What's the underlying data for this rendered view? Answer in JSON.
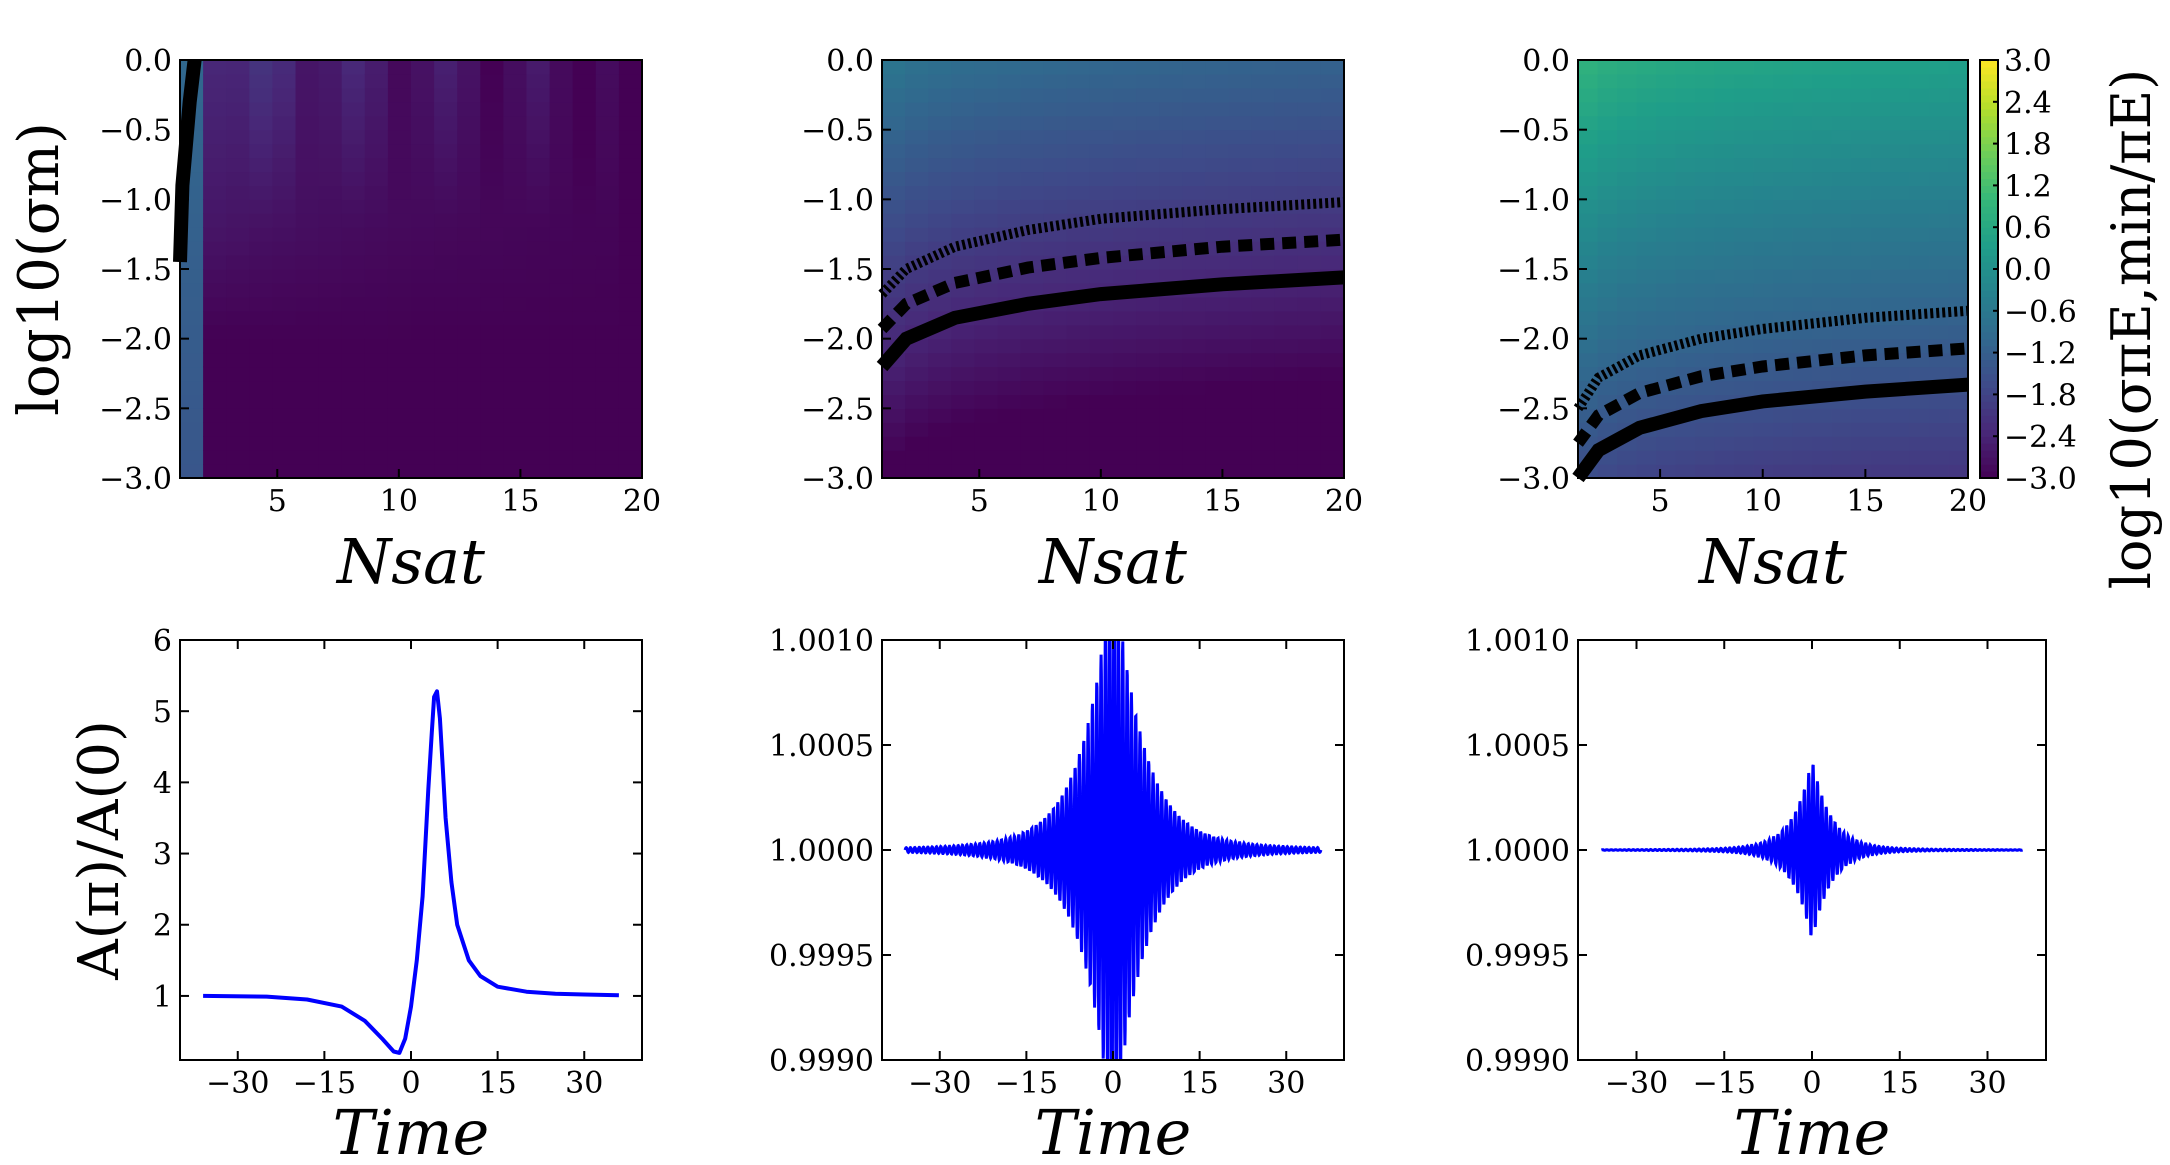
{
  "colormap": "viridis",
  "colors": {
    "curve": "#0000ff",
    "contour": "#000000",
    "frame": "#000000"
  },
  "labels": {
    "nsat": "Nsat",
    "time": "Time",
    "heatmap_ylabel": "log10(σm)",
    "lightcurve_ylabel": "A(π)/A(0)",
    "colorbar_label": "log10(σπE,min/πE)"
  },
  "chart_data": [
    {
      "type": "heatmap",
      "panel": "top-left",
      "xlabel": "Nsat",
      "ylabel": "log10(σm)",
      "x_range": [
        1,
        20
      ],
      "ylim": [
        -3.0,
        0.0
      ],
      "xticks": [
        "5",
        "10",
        "15",
        "20"
      ],
      "yticks": [
        "0.0",
        "-0.5",
        "-1.0",
        "-1.5",
        "-2.0",
        "-2.5",
        "-3.0"
      ],
      "contours": [
        {
          "style": "solid",
          "points": [
            [
              1.0,
              -1.45
            ],
            [
              1.1,
              -0.9
            ],
            [
              1.4,
              -0.3
            ],
            [
              1.6,
              0.0
            ]
          ]
        }
      ]
    },
    {
      "type": "heatmap",
      "panel": "top-middle",
      "xlabel": "Nsat",
      "ylabel": "",
      "x_range": [
        1,
        20
      ],
      "ylim": [
        -3.0,
        0.0
      ],
      "xticks": [
        "5",
        "10",
        "15",
        "20"
      ],
      "yticks": [
        "0.0",
        "-0.5",
        "-1.0",
        "-1.5",
        "-2.0",
        "-2.5",
        "-3.0"
      ],
      "contours": [
        {
          "style": "solid",
          "points": [
            [
              1,
              -2.2
            ],
            [
              2,
              -2.0
            ],
            [
              4,
              -1.85
            ],
            [
              7,
              -1.75
            ],
            [
              10,
              -1.68
            ],
            [
              15,
              -1.61
            ],
            [
              20,
              -1.56
            ]
          ]
        },
        {
          "style": "dashed",
          "points": [
            [
              1,
              -1.93
            ],
            [
              2,
              -1.75
            ],
            [
              4,
              -1.6
            ],
            [
              7,
              -1.49
            ],
            [
              10,
              -1.42
            ],
            [
              15,
              -1.34
            ],
            [
              20,
              -1.29
            ]
          ]
        },
        {
          "style": "dotted",
          "points": [
            [
              1,
              -1.68
            ],
            [
              2,
              -1.5
            ],
            [
              4,
              -1.34
            ],
            [
              7,
              -1.22
            ],
            [
              10,
              -1.14
            ],
            [
              15,
              -1.07
            ],
            [
              20,
              -1.02
            ]
          ]
        }
      ]
    },
    {
      "type": "heatmap",
      "panel": "top-right",
      "xlabel": "Nsat",
      "ylabel": "",
      "x_range": [
        1,
        20
      ],
      "ylim": [
        -3.0,
        0.0
      ],
      "xticks": [
        "5",
        "10",
        "15",
        "20"
      ],
      "yticks": [
        "0.0",
        "-0.5",
        "-1.0",
        "-1.5",
        "-2.0",
        "-2.5",
        "-3.0"
      ],
      "contours": [
        {
          "style": "solid",
          "points": [
            [
              1,
              -3.0
            ],
            [
              2,
              -2.8
            ],
            [
              4,
              -2.64
            ],
            [
              7,
              -2.52
            ],
            [
              10,
              -2.45
            ],
            [
              15,
              -2.38
            ],
            [
              20,
              -2.33
            ]
          ]
        },
        {
          "style": "dashed",
          "points": [
            [
              1,
              -2.75
            ],
            [
              2,
              -2.55
            ],
            [
              4,
              -2.39
            ],
            [
              7,
              -2.27
            ],
            [
              10,
              -2.2
            ],
            [
              15,
              -2.12
            ],
            [
              20,
              -2.07
            ]
          ]
        },
        {
          "style": "dotted",
          "points": [
            [
              1,
              -2.5
            ],
            [
              2,
              -2.28
            ],
            [
              4,
              -2.12
            ],
            [
              7,
              -2.0
            ],
            [
              10,
              -1.93
            ],
            [
              15,
              -1.85
            ],
            [
              20,
              -1.8
            ]
          ]
        }
      ]
    },
    {
      "type": "colorbar",
      "label": "log10(σπE,min/πE)",
      "vmin": -3.0,
      "vmax": 3.0,
      "ticks": [
        "3.0",
        "2.4",
        "1.8",
        "1.2",
        "0.6",
        "0.0",
        "-0.6",
        "-1.2",
        "-1.8",
        "-2.4",
        "-3.0"
      ]
    },
    {
      "type": "line",
      "panel": "bottom-left",
      "xlabel": "Time",
      "ylabel": "A(π)/A(0)",
      "xlim": [
        -40,
        40
      ],
      "ylim": [
        0.1,
        6.0
      ],
      "xticks": [
        "-30",
        "-15",
        "0",
        "15",
        "30"
      ],
      "yticks": [
        "1",
        "2",
        "3",
        "4",
        "5",
        "6"
      ],
      "series": [
        {
          "name": "magnification ratio",
          "x": [
            -36,
            -25,
            -18,
            -12,
            -8,
            -5,
            -3,
            -2,
            -1,
            0,
            1,
            2,
            3,
            3.6,
            4,
            4.5,
            5,
            5.5,
            6,
            7,
            8,
            10,
            12,
            15,
            20,
            25,
            30,
            36
          ],
          "y": [
            1.0,
            0.99,
            0.95,
            0.85,
            0.65,
            0.4,
            0.22,
            0.2,
            0.4,
            0.85,
            1.5,
            2.4,
            3.9,
            4.7,
            5.2,
            5.28,
            4.9,
            4.2,
            3.5,
            2.6,
            2.0,
            1.5,
            1.28,
            1.13,
            1.06,
            1.03,
            1.02,
            1.01
          ]
        }
      ]
    },
    {
      "type": "line",
      "panel": "bottom-middle",
      "xlabel": "Time",
      "ylabel": "",
      "xlim": [
        -40,
        40
      ],
      "ylim": [
        0.999,
        1.001
      ],
      "xticks": [
        "-30",
        "-15",
        "0",
        "15",
        "30"
      ],
      "yticks": [
        "1.0010",
        "1.0005",
        "1.0000",
        "0.9995",
        "0.9990"
      ],
      "oscillation": {
        "center": 1.0,
        "peak_amplitude": 0.0012,
        "decay_scale": 4.5,
        "t_range": [
          -36,
          36
        ],
        "period": 0.75
      },
      "series": [
        {
          "name": "envelope",
          "x": [
            -36,
            -20,
            -10,
            -5,
            -2,
            0,
            2,
            5,
            10,
            20,
            36
          ],
          "y_amp": [
            0.0,
            1e-05,
            8e-05,
            0.00022,
            0.00055,
            0.0012,
            0.00055,
            0.00022,
            8e-05,
            1e-05,
            0.0
          ]
        }
      ]
    },
    {
      "type": "line",
      "panel": "bottom-right",
      "xlabel": "Time",
      "ylabel": "",
      "xlim": [
        -40,
        40
      ],
      "ylim": [
        0.999,
        1.001
      ],
      "xticks": [
        "-30",
        "-15",
        "0",
        "15",
        "30"
      ],
      "yticks": [
        "1.0010",
        "1.0005",
        "1.0000",
        "0.9995",
        "0.9990"
      ],
      "oscillation": {
        "center": 1.0,
        "peak_amplitude": 0.00038,
        "decay_scale": 2.8,
        "t_range": [
          -36,
          36
        ],
        "period": 0.75
      },
      "series": [
        {
          "name": "envelope",
          "x": [
            -36,
            -20,
            -10,
            -5,
            -2,
            0,
            2,
            5,
            10,
            20,
            36
          ],
          "y_amp": [
            0.0,
            0.0,
            2e-05,
            6e-05,
            0.00015,
            0.00038,
            0.00015,
            6e-05,
            2e-05,
            0.0,
            0.0
          ]
        }
      ]
    }
  ]
}
